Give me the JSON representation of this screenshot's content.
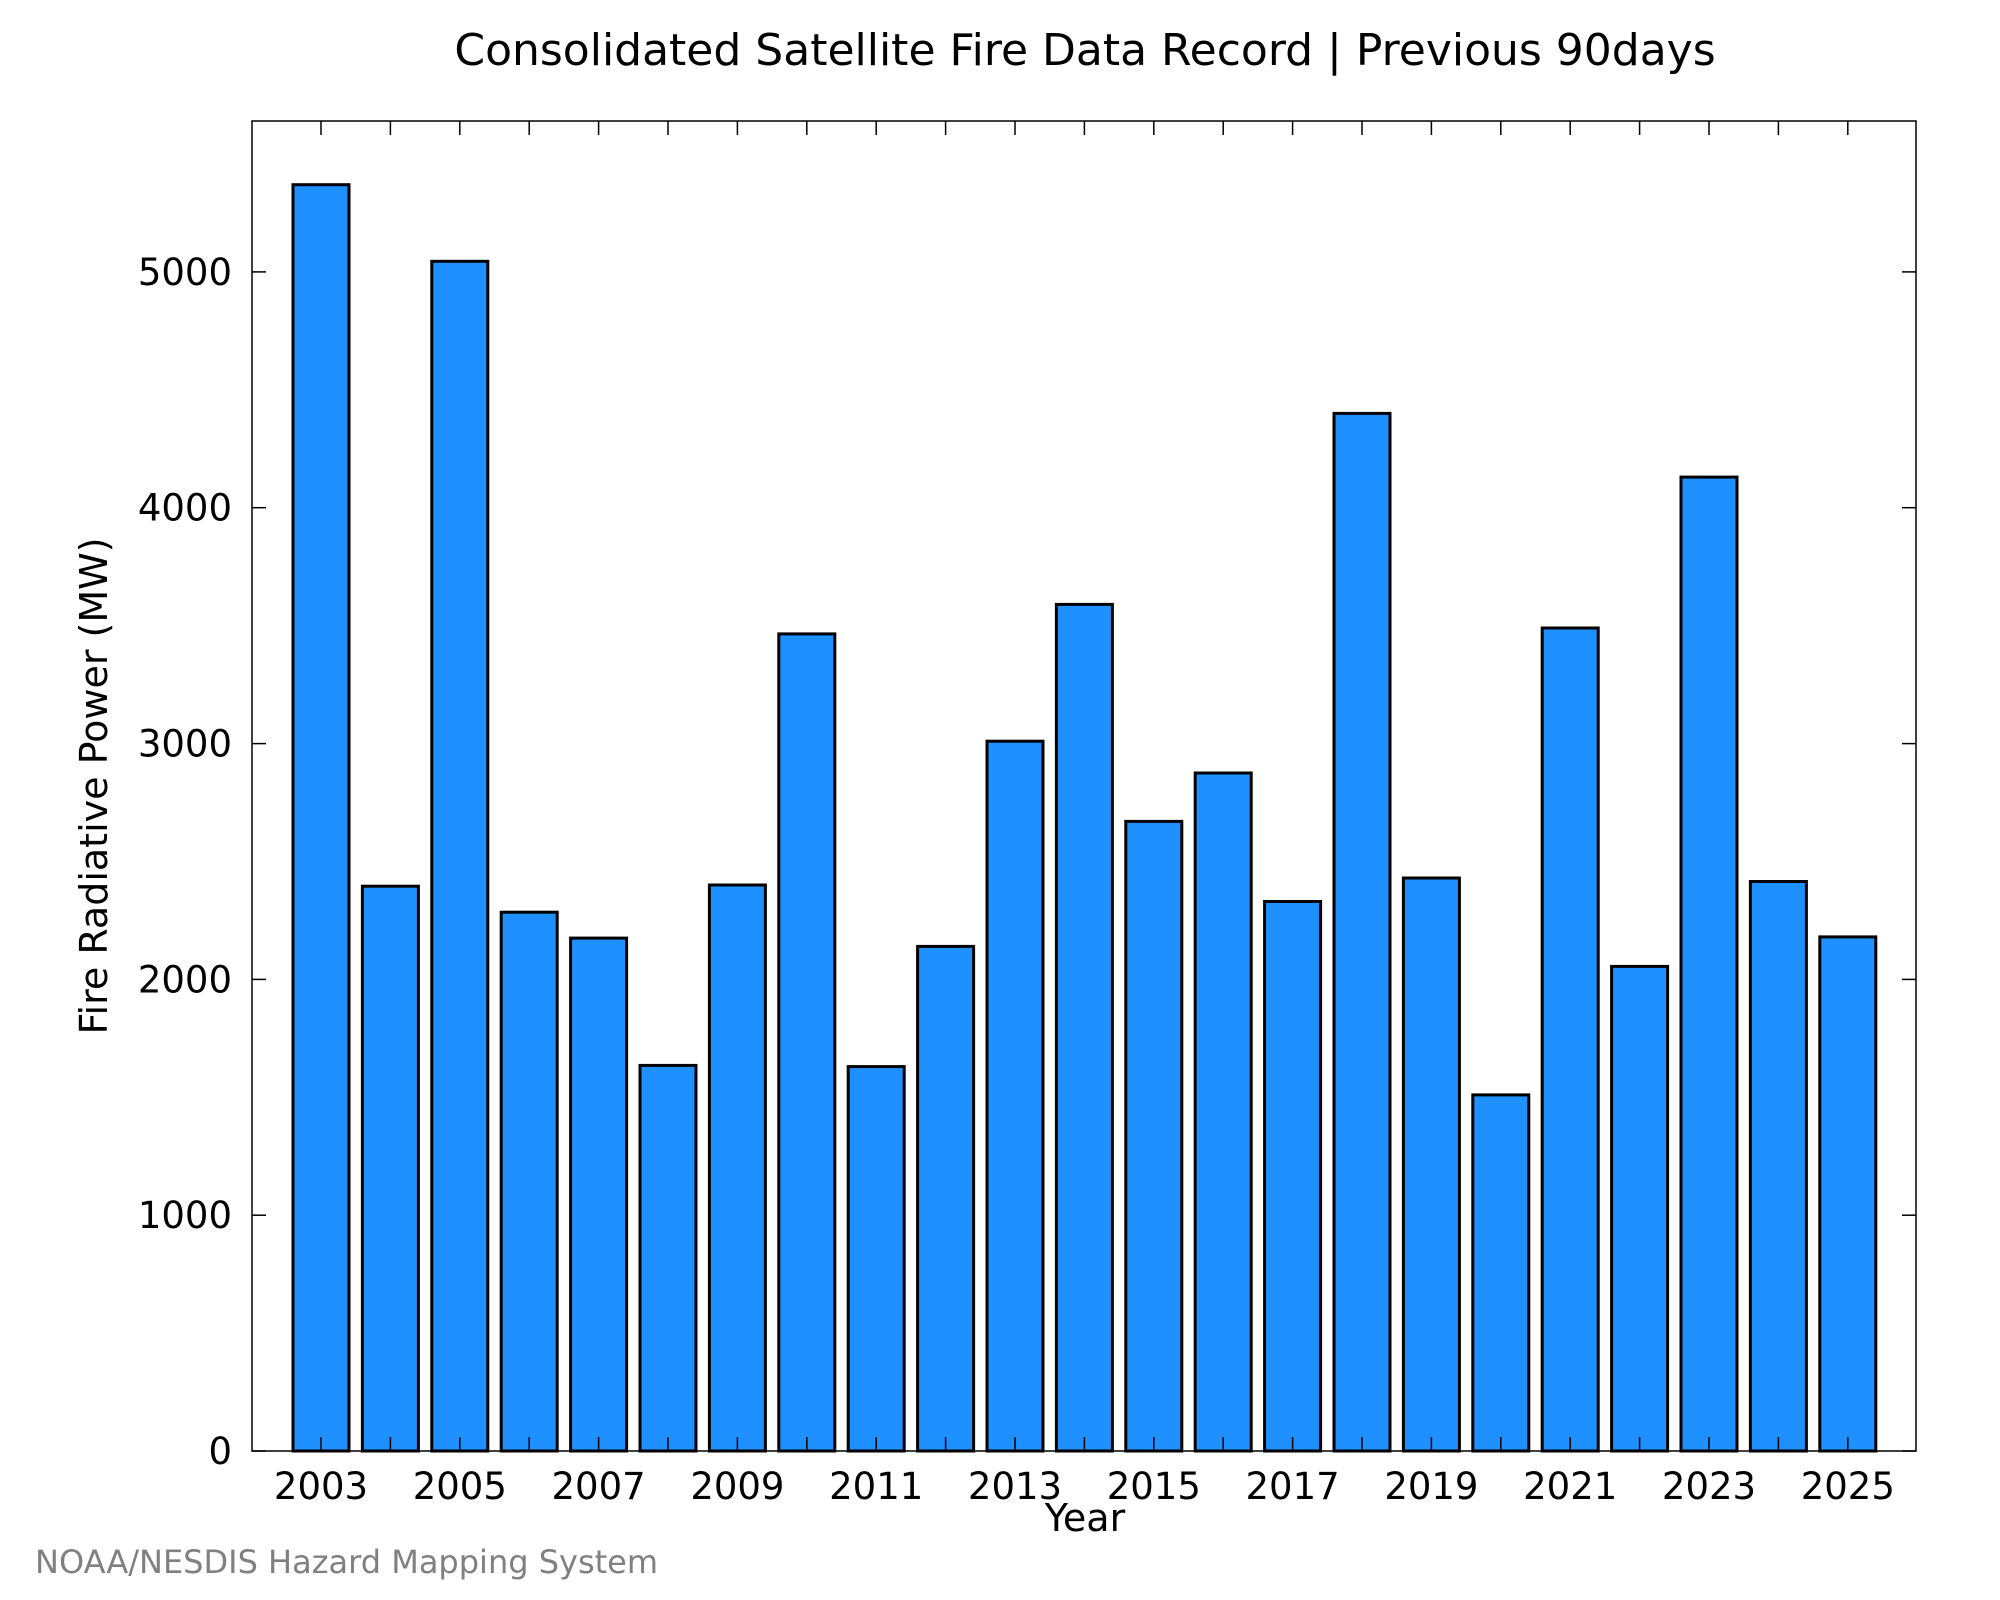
{
  "chart_data": {
    "type": "bar",
    "title": "Consolidated Satellite Fire Data Record | Previous 90days",
    "xlabel": "Year",
    "ylabel": "Fire Radiative Power (MW)",
    "credit": "NOAA/NESDIS Hazard Mapping System",
    "bar_color": "#1E90FF",
    "bar_edge_color": "#000000",
    "grid": false,
    "legend": "none",
    "ylim": [
      0,
      5640
    ],
    "yticks": [
      0,
      1000,
      2000,
      3000,
      4000,
      5000
    ],
    "yticks_text": [
      "0",
      "1000",
      "2000",
      "3000",
      "4000",
      "5000"
    ],
    "xticks_text": [
      "2003",
      "2005",
      "2007",
      "2009",
      "2011",
      "2013",
      "2015",
      "2017",
      "2019",
      "2021",
      "2023",
      "2025"
    ],
    "categories": [
      "2003",
      "2004",
      "2005",
      "2006",
      "2007",
      "2008",
      "2009",
      "2010",
      "2011",
      "2012",
      "2013",
      "2014",
      "2015",
      "2016",
      "2017",
      "2018",
      "2019",
      "2020",
      "2021",
      "2022",
      "2023",
      "2024",
      "2025"
    ],
    "values": [
      5370,
      2395,
      5045,
      2285,
      2175,
      1635,
      2400,
      3465,
      1630,
      2140,
      3010,
      3590,
      2670,
      2875,
      2330,
      4400,
      2430,
      1510,
      3490,
      2055,
      4130,
      2415,
      2180
    ]
  }
}
